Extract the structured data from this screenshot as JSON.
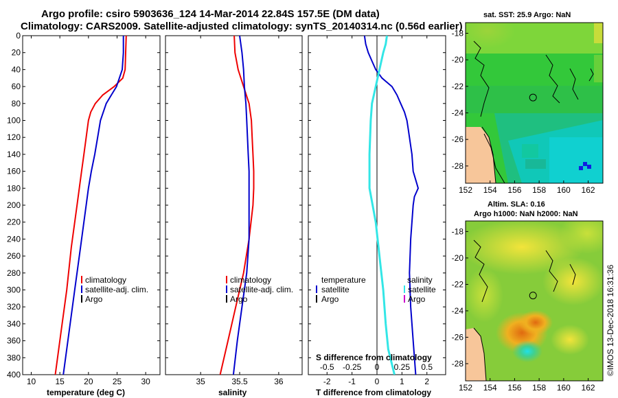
{
  "header": {
    "line1": "Argo profile: csiro 5903636_124 14-Mar-2014 22.84S 157.5E (DM data)",
    "line2": "Climatology: CARS2009. Satellite-adjusted climatology: synTS_20140314.nc (0.56d earlier)"
  },
  "watermark": "©IMOS 13-Dec-2018 16:31:36",
  "colors": {
    "climatology": "#ee0000",
    "satellite": "#0000cc",
    "argo": "#000000",
    "salinity_diff": "#33e6e6",
    "argo_sal_diff": "#cc00cc"
  },
  "chart_data": [
    {
      "id": "temperature",
      "type": "line",
      "xlabel": "temperature (deg C)",
      "ylabel": "depth",
      "xlim": [
        8.5,
        32.5
      ],
      "xticks": [
        10,
        15,
        20,
        25,
        30
      ],
      "ylim": [
        400,
        0
      ],
      "yticks": [
        0,
        20,
        40,
        60,
        80,
        100,
        120,
        140,
        160,
        180,
        200,
        220,
        240,
        260,
        280,
        300,
        320,
        340,
        360,
        380,
        400
      ],
      "legend": [
        "climatology",
        "satellite-adj. clim.",
        "Argo"
      ],
      "series": [
        {
          "name": "climatology",
          "color_key": "climatology",
          "depth": [
            0,
            20,
            40,
            50,
            60,
            70,
            80,
            90,
            100,
            120,
            140,
            160,
            180,
            200,
            250,
            300,
            350,
            400
          ],
          "values": [
            26.6,
            26.5,
            26.4,
            26.0,
            24.5,
            22.5,
            21.2,
            20.4,
            20.0,
            19.6,
            19.2,
            18.8,
            18.4,
            18.0,
            17.0,
            16.2,
            15.2,
            14.2
          ]
        },
        {
          "name": "satellite-adj. clim.",
          "color_key": "satellite",
          "depth": [
            0,
            20,
            40,
            60,
            70,
            80,
            100,
            120,
            140,
            160,
            180,
            200,
            250,
            300,
            350,
            400
          ],
          "values": [
            26.1,
            26.1,
            25.9,
            24.9,
            24.0,
            23.1,
            22.1,
            21.6,
            21.1,
            20.5,
            20.0,
            19.6,
            18.6,
            17.6,
            16.6,
            15.6
          ]
        }
      ]
    },
    {
      "id": "salinity",
      "type": "line",
      "xlabel": "salinity",
      "ylabel": "depth",
      "xlim": [
        34.55,
        36.3
      ],
      "xticks": [
        35,
        35.5,
        36
      ],
      "ylim": [
        400,
        0
      ],
      "legend": [
        "climatology",
        "satellite-adj. clim.",
        "Argo"
      ],
      "series": [
        {
          "name": "climatology",
          "color_key": "climatology",
          "depth": [
            0,
            20,
            40,
            60,
            80,
            100,
            120,
            140,
            160,
            180,
            200,
            240,
            280,
            320,
            360,
            400
          ],
          "values": [
            35.43,
            35.44,
            35.48,
            35.55,
            35.62,
            35.65,
            35.66,
            35.67,
            35.68,
            35.68,
            35.67,
            35.62,
            35.55,
            35.45,
            35.35,
            35.25
          ]
        },
        {
          "name": "satellite-adj. clim.",
          "color_key": "satellite",
          "depth": [
            0,
            20,
            40,
            60,
            80,
            100,
            120,
            140,
            160,
            200,
            240,
            280,
            320,
            360,
            400
          ],
          "values": [
            35.5,
            35.53,
            35.55,
            35.56,
            35.58,
            35.59,
            35.6,
            35.61,
            35.62,
            35.62,
            35.62,
            35.59,
            35.53,
            35.47,
            35.42
          ]
        }
      ]
    },
    {
      "id": "difference",
      "type": "line",
      "xlabel": "T difference from climatology",
      "top_label": "S difference from climatology",
      "xlim": [
        -2.75,
        2.75
      ],
      "xticks": [
        -2,
        -1,
        0,
        1,
        2
      ],
      "top_tick_labels": [
        "-0.5",
        "-0.25",
        "0",
        "0.25",
        "0.5"
      ],
      "ylim": [
        400,
        0
      ],
      "legend_headers": [
        "temperature",
        "salinity"
      ],
      "legend_left": [
        "satellite",
        "Argo"
      ],
      "legend_right": [
        "satellite",
        "Argo"
      ],
      "series": [
        {
          "name": "T difference satellite",
          "color_key": "satellite",
          "depth": [
            0,
            10,
            20,
            30,
            40,
            50,
            60,
            70,
            80,
            90,
            100,
            110,
            120,
            130,
            140,
            160,
            180,
            190,
            200,
            240,
            280,
            320,
            360,
            400
          ],
          "values": [
            -0.5,
            -0.45,
            -0.35,
            -0.2,
            -0.05,
            0.2,
            0.6,
            0.8,
            0.95,
            1.1,
            1.2,
            1.25,
            1.3,
            1.35,
            1.4,
            1.45,
            1.65,
            1.5,
            1.45,
            1.35,
            1.3,
            1.35,
            1.45,
            1.55
          ]
        },
        {
          "name": "S difference satellite",
          "color_key": "salinity_diff",
          "depth": [
            0,
            10,
            20,
            40,
            60,
            80,
            100,
            140,
            180,
            220,
            260,
            300,
            340,
            370,
            400
          ],
          "values": [
            0.4,
            0.35,
            0.25,
            0.1,
            -0.05,
            -0.2,
            -0.25,
            -0.3,
            -0.3,
            -0.05,
            0.1,
            0.25,
            0.35,
            0.45,
            0.7
          ]
        }
      ]
    },
    {
      "id": "sst_map",
      "type": "heatmap",
      "title": "sat. SST: 25.9 Argo: NaN",
      "xticks": [
        152,
        154,
        156,
        158,
        160,
        162
      ],
      "yticks": [
        -18,
        -20,
        -22,
        -24,
        -26,
        -28
      ],
      "xlim": [
        152,
        163.2
      ],
      "ylim": [
        -29.3,
        -17.2
      ],
      "profile_location": [
        157.5,
        -22.84
      ]
    },
    {
      "id": "sla_map",
      "type": "heatmap",
      "title_line1": "Altim. SLA: 0.16",
      "title_line2": "Argo h1000: NaN h2000: NaN",
      "xticks": [
        152,
        154,
        156,
        158,
        160,
        162
      ],
      "yticks": [
        -18,
        -20,
        -22,
        -24,
        -26,
        -28
      ],
      "xlim": [
        152,
        163.2
      ],
      "ylim": [
        -29.3,
        -17.2
      ],
      "profile_location": [
        157.5,
        -22.84
      ]
    }
  ]
}
